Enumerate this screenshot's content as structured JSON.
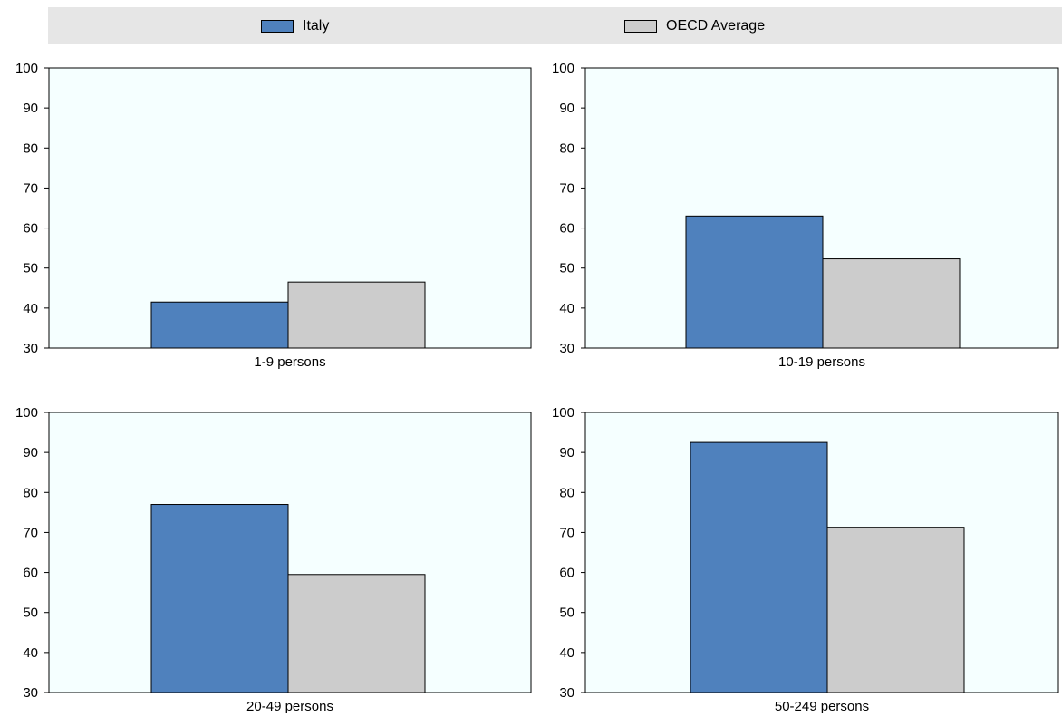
{
  "colors": {
    "italy": "#4f81bd",
    "oecd": "#cccccc",
    "plot_bg": "#f5ffff",
    "legend_bg": "#e6e6e6"
  },
  "legend": {
    "items": [
      {
        "label": "Italy",
        "color": "#4f81bd"
      },
      {
        "label": "OECD Average",
        "color": "#cccccc"
      }
    ]
  },
  "chart_data": [
    {
      "type": "bar",
      "categories": [
        "1-9 persons"
      ],
      "ylim": [
        30,
        100
      ],
      "yticks": [
        30,
        40,
        50,
        60,
        70,
        80,
        90,
        100
      ],
      "series": [
        {
          "name": "Italy",
          "values": [
            41.5
          ]
        },
        {
          "name": "OECD Average",
          "values": [
            46.5
          ]
        }
      ],
      "xlabel": "1-9 persons",
      "grid": false,
      "legend": "top"
    },
    {
      "type": "bar",
      "categories": [
        "10-19 persons"
      ],
      "ylim": [
        30,
        100
      ],
      "yticks": [
        30,
        40,
        50,
        60,
        70,
        80,
        90,
        100
      ],
      "series": [
        {
          "name": "Italy",
          "values": [
            63
          ]
        },
        {
          "name": "OECD Average",
          "values": [
            52.3
          ]
        }
      ],
      "xlabel": "10-19 persons",
      "grid": false,
      "legend": "top"
    },
    {
      "type": "bar",
      "categories": [
        "20-49 persons"
      ],
      "ylim": [
        30,
        100
      ],
      "yticks": [
        30,
        40,
        50,
        60,
        70,
        80,
        90,
        100
      ],
      "series": [
        {
          "name": "Italy",
          "values": [
            77
          ]
        },
        {
          "name": "OECD Average",
          "values": [
            59.5
          ]
        }
      ],
      "xlabel": "20-49 persons",
      "grid": false,
      "legend": "top"
    },
    {
      "type": "bar",
      "categories": [
        "50-249 persons"
      ],
      "ylim": [
        30,
        100
      ],
      "yticks": [
        30,
        40,
        50,
        60,
        70,
        80,
        90,
        100
      ],
      "series": [
        {
          "name": "Italy",
          "values": [
            92.5
          ]
        },
        {
          "name": "OECD Average",
          "values": [
            71.3
          ]
        }
      ],
      "xlabel": "50-249 persons",
      "grid": false,
      "legend": "top"
    }
  ]
}
